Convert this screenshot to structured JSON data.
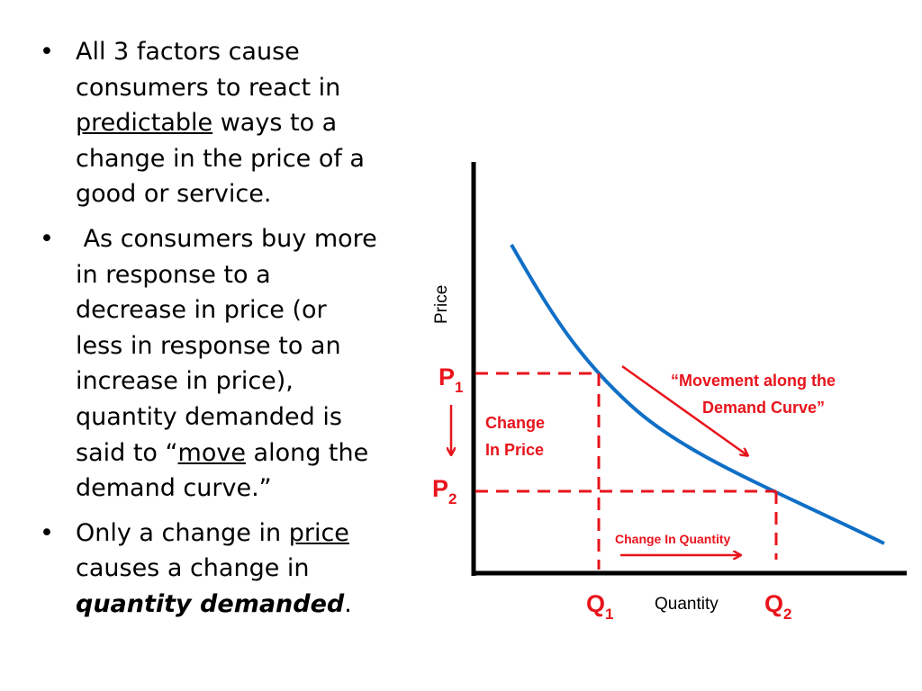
{
  "bullets": [
    {
      "lines": [
        {
          "pre": "All 3 factors cause",
          "u": "",
          "post": ""
        },
        {
          "pre": "consumers to react in",
          "u": "",
          "post": ""
        },
        {
          "pre": "",
          "u": "predictable",
          "post": " ways to a"
        },
        {
          "pre": "change in the price of a",
          "u": "",
          "post": ""
        },
        {
          "pre": "good or service.",
          "u": "",
          "post": ""
        }
      ]
    },
    {
      "lines": [
        {
          "pre": " As consumers buy more",
          "u": "",
          "post": ""
        },
        {
          "pre": "in response to a",
          "u": "",
          "post": ""
        },
        {
          "pre": "decrease in price (or",
          "u": "",
          "post": ""
        },
        {
          "pre": "less in response to an",
          "u": "",
          "post": ""
        },
        {
          "pre": "increase in price),",
          "u": "",
          "post": ""
        },
        {
          "pre": "quantity demanded is",
          "u": "",
          "post": ""
        },
        {
          "pre": "said to “",
          "u": "move",
          "post": " along the"
        },
        {
          "pre": "demand curve.”",
          "u": "",
          "post": ""
        }
      ]
    },
    {
      "lines": [
        {
          "pre": "Only a change in ",
          "u": "price",
          "post": ""
        },
        {
          "pre": "causes a change in",
          "u": "",
          "post": ""
        },
        {
          "pre": "",
          "u": "",
          "post": "",
          "bi": "quantity demanded",
          "tail": "."
        }
      ]
    }
  ],
  "bullet_glyph": "•",
  "diagram": {
    "y_axis_label": "Price",
    "x_axis_label": "Quantity",
    "p1": {
      "main": "P",
      "sub": "1"
    },
    "p2": {
      "main": "P",
      "sub": "2"
    },
    "q1": {
      "main": "Q",
      "sub": "1"
    },
    "q2": {
      "main": "Q",
      "sub": "2"
    },
    "change_in_price": [
      "Change",
      "In Price"
    ],
    "change_in_quantity": "Change In Quantity",
    "movement_label": [
      "“Movement along the",
      "Demand Curve”"
    ],
    "colors": {
      "curve": "#0f6fc6",
      "annotation": "#e8141c",
      "axis": "#000000"
    }
  }
}
